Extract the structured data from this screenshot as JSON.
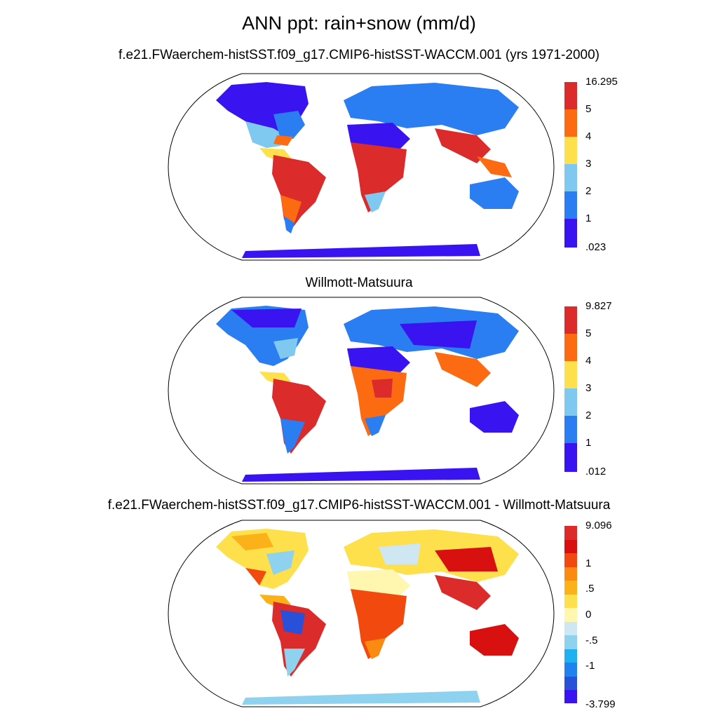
{
  "title": "ANN ppt: rain+snow (mm/d)",
  "panels": [
    {
      "title": "f.e21.FWaerchem-histSST.f09_g17.CMIP6-histSST-WACCM.001 (yrs 1971-2000)",
      "colorbar": {
        "colors": [
          "#3a14f0",
          "#2a7ef2",
          "#7fc8f0",
          "#fde04b",
          "#fc6a12",
          "#db2b2b"
        ],
        "labels": [
          "16.295",
          "5",
          "4",
          "3",
          "2",
          "1",
          ".023"
        ]
      }
    },
    {
      "title": "Willmott-Matsuura",
      "colorbar": {
        "colors": [
          "#3a14f0",
          "#2a7ef2",
          "#7fc8f0",
          "#fde04b",
          "#fc6a12",
          "#db2b2b"
        ],
        "labels": [
          "9.827",
          "5",
          "4",
          "3",
          "2",
          "1",
          ".012"
        ]
      }
    },
    {
      "title": "f.e21.FWaerchem-histSST.f09_g17.CMIP6-histSST-WACCM.001 - Willmott-Matsuura",
      "colorbar": {
        "colors": [
          "#3a14f0",
          "#2950d8",
          "#1f82ee",
          "#1fb0f0",
          "#8fd2f0",
          "#cfe6f3",
          "#fff6b0",
          "#fde04b",
          "#fbb21a",
          "#fb8a12",
          "#f24a0e",
          "#d81010",
          "#db2b2b"
        ],
        "labels": [
          "9.096",
          "1",
          ".5",
          "0",
          "-.5",
          "-1",
          "-3.799"
        ]
      }
    }
  ]
}
